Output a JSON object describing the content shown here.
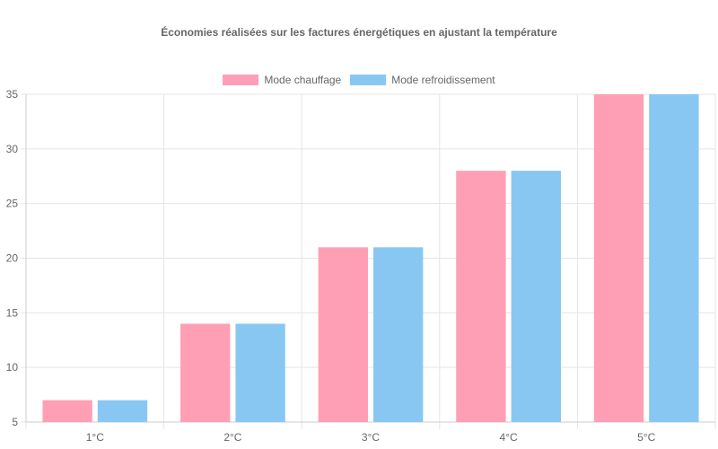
{
  "chart_data": {
    "type": "bar",
    "title": "Économies réalisées sur les factures énergétiques en ajustant la température",
    "categories": [
      "1°C",
      "2°C",
      "3°C",
      "4°C",
      "5°C"
    ],
    "series": [
      {
        "name": "Mode chauffage",
        "values": [
          7,
          14,
          21,
          28,
          35
        ],
        "color": "#ff9fb5",
        "color_name": "pink"
      },
      {
        "name": "Mode refroidissement",
        "values": [
          7,
          14,
          21,
          28,
          35
        ],
        "color": "#89c7f3",
        "color_name": "light-blue"
      }
    ],
    "xlabel": "",
    "ylabel": "",
    "ylim": [
      5,
      35
    ],
    "yticks": [
      5,
      10,
      15,
      20,
      25,
      30,
      35
    ],
    "grid": true,
    "legend": "top-center"
  }
}
